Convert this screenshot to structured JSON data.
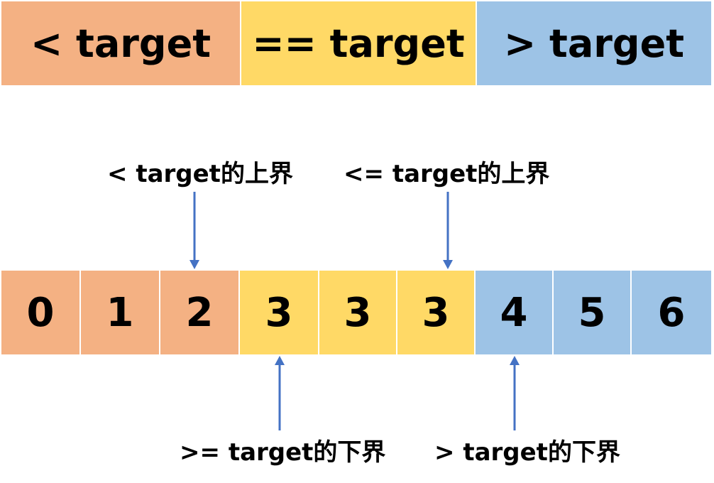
{
  "regions": [
    {
      "label": "< target",
      "color": "#f4b183"
    },
    {
      "label": "== target",
      "color": "#ffd966"
    },
    {
      "label": "> target",
      "color": "#9dc3e6"
    }
  ],
  "cells": [
    {
      "value": "0",
      "region": "less"
    },
    {
      "value": "1",
      "region": "less"
    },
    {
      "value": "2",
      "region": "less"
    },
    {
      "value": "3",
      "region": "equal"
    },
    {
      "value": "3",
      "region": "equal"
    },
    {
      "value": "3",
      "region": "equal"
    },
    {
      "value": "4",
      "region": "greater"
    },
    {
      "value": "5",
      "region": "greater"
    },
    {
      "value": "6",
      "region": "greater"
    }
  ],
  "region_colors": {
    "less": "#f4b183",
    "equal": "#ffd966",
    "greater": "#9dc3e6"
  },
  "arrow_color": "#4472c4",
  "annotations": {
    "lt_upper": {
      "text": "< target的上界",
      "points_to_index": 2
    },
    "le_upper": {
      "text": "<= target的上界",
      "points_to_index": 5
    },
    "ge_lower": {
      "text": ">= target的下界",
      "points_to_index": 3
    },
    "gt_lower": {
      "text": "> target的下界",
      "points_to_index": 6
    }
  }
}
